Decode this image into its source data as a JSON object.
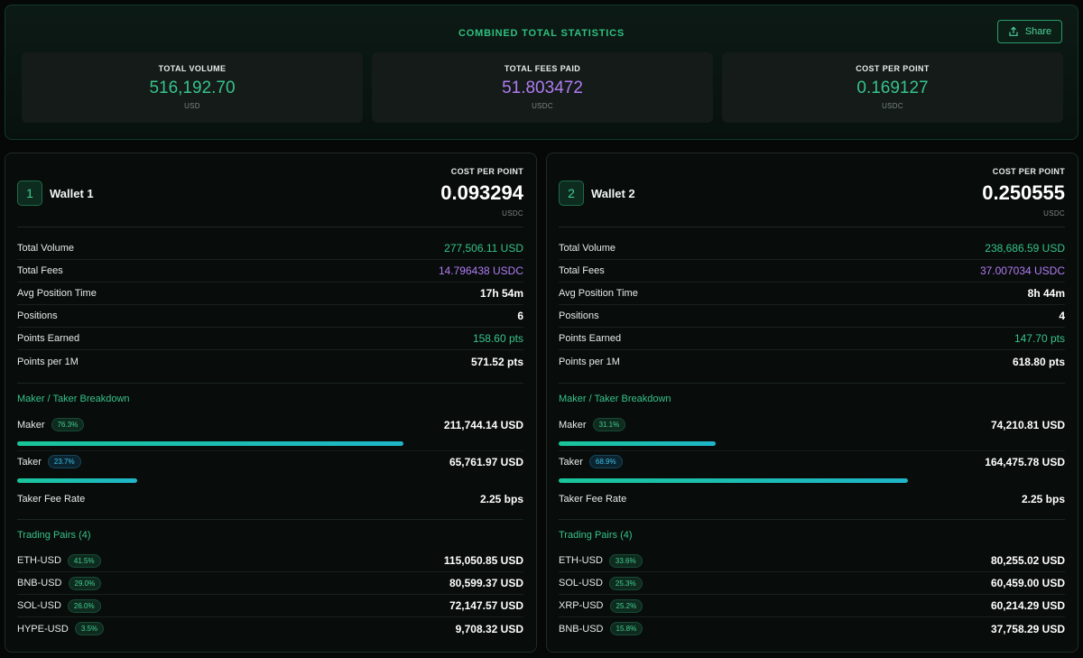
{
  "combined": {
    "title": "COMBINED TOTAL STATISTICS",
    "share_label": "Share",
    "stats": [
      {
        "label": "TOTAL VOLUME",
        "value": "516,192.70",
        "unit": "USD"
      },
      {
        "label": "TOTAL FEES PAID",
        "value": "51.803472",
        "unit": "USDC"
      },
      {
        "label": "COST PER POINT",
        "value": "0.169127",
        "unit": "USDC"
      }
    ]
  },
  "colors": {
    "green": "#37c38b",
    "purple": "#b07cf2",
    "bar": "#1fb6c9"
  },
  "wallets": [
    {
      "badge": "1",
      "name": "Wallet 1",
      "cpp_label": "COST PER POINT",
      "cpp_value": "0.093294",
      "cpp_unit": "USDC",
      "stats": [
        {
          "label": "Total Volume",
          "value": "277,506.11 USD"
        },
        {
          "label": "Total Fees",
          "value": "14.796438 USDC"
        },
        {
          "label": "Avg Position Time",
          "value": "17h 54m"
        },
        {
          "label": "Positions",
          "value": "6"
        },
        {
          "label": "Points Earned",
          "value": "158.60 pts"
        },
        {
          "label": "Points per 1M",
          "value": "571.52 pts"
        }
      ],
      "breakdown_title": "Maker / Taker Breakdown",
      "maker": {
        "label": "Maker",
        "pct": "76.3%",
        "value": "211,744.14 USD",
        "fraction": 0.763
      },
      "taker": {
        "label": "Taker",
        "pct": "23.7%",
        "value": "65,761.97 USD",
        "fraction": 0.237
      },
      "fee_rate": {
        "label": "Taker Fee Rate",
        "value": "2.25 bps"
      },
      "pairs_title": "Trading Pairs (4)",
      "pairs": [
        {
          "name": "ETH-USD",
          "pct": "41.5%",
          "value": "115,050.85 USD"
        },
        {
          "name": "BNB-USD",
          "pct": "29.0%",
          "value": "80,599.37 USD"
        },
        {
          "name": "SOL-USD",
          "pct": "26.0%",
          "value": "72,147.57 USD"
        },
        {
          "name": "HYPE-USD",
          "pct": "3.5%",
          "value": "9,708.32 USD"
        }
      ]
    },
    {
      "badge": "2",
      "name": "Wallet 2",
      "cpp_label": "COST PER POINT",
      "cpp_value": "0.250555",
      "cpp_unit": "USDC",
      "stats": [
        {
          "label": "Total Volume",
          "value": "238,686.59 USD"
        },
        {
          "label": "Total Fees",
          "value": "37.007034 USDC"
        },
        {
          "label": "Avg Position Time",
          "value": "8h 44m"
        },
        {
          "label": "Positions",
          "value": "4"
        },
        {
          "label": "Points Earned",
          "value": "147.70 pts"
        },
        {
          "label": "Points per 1M",
          "value": "618.80 pts"
        }
      ],
      "breakdown_title": "Maker / Taker Breakdown",
      "maker": {
        "label": "Maker",
        "pct": "31.1%",
        "value": "74,210.81 USD",
        "fraction": 0.311
      },
      "taker": {
        "label": "Taker",
        "pct": "68.9%",
        "value": "164,475.78 USD",
        "fraction": 0.689
      },
      "fee_rate": {
        "label": "Taker Fee Rate",
        "value": "2.25 bps"
      },
      "pairs_title": "Trading Pairs (4)",
      "pairs": [
        {
          "name": "ETH-USD",
          "pct": "33.6%",
          "value": "80,255.02 USD"
        },
        {
          "name": "SOL-USD",
          "pct": "25.3%",
          "value": "60,459.00 USD"
        },
        {
          "name": "XRP-USD",
          "pct": "25.2%",
          "value": "60,214.29 USD"
        },
        {
          "name": "BNB-USD",
          "pct": "15.8%",
          "value": "37,758.29 USD"
        }
      ]
    }
  ]
}
